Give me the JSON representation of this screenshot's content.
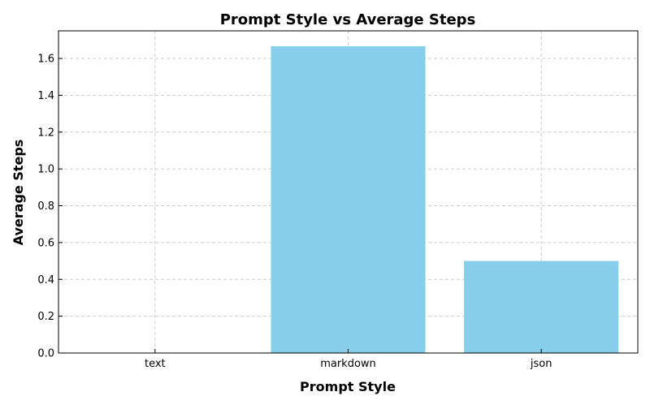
{
  "chart_data": {
    "type": "bar",
    "title": "Prompt Style vs Average Steps",
    "xlabel": "Prompt Style",
    "ylabel": "Average Steps",
    "categories": [
      "text",
      "markdown",
      "json"
    ],
    "values": [
      0.0,
      1.6667,
      0.5
    ],
    "ylim": [
      0,
      1.75
    ],
    "yticks": [
      "0.0",
      "0.2",
      "0.4",
      "0.6",
      "0.8",
      "1.0",
      "1.2",
      "1.4",
      "1.6"
    ],
    "bar_color": "#87ceeb",
    "grid": true
  }
}
